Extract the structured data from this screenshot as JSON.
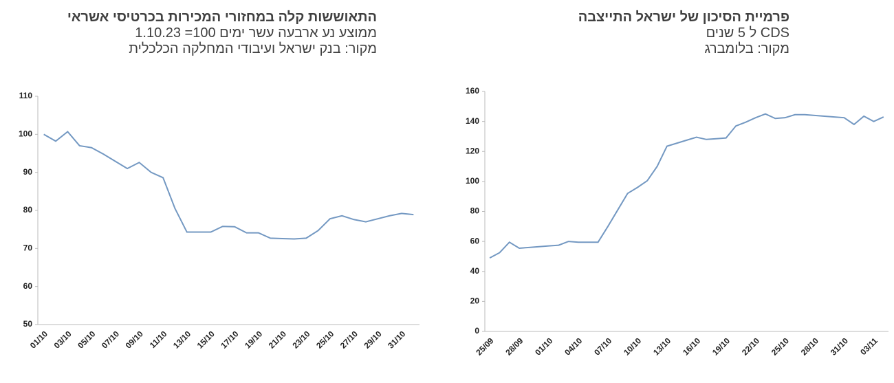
{
  "chart_data": [
    {
      "type": "line",
      "title": "התאוששות קלה במחזורי המכירות בכרטיסי אשראי",
      "subtitle": "ממוצע נע ארבעה עשר ימים 100= 1.10.23",
      "source": "מקור: בנק ישראל ועיבודי המחלקה הכלכלית",
      "categories": [
        "01/10",
        null,
        "03/10",
        null,
        "05/10",
        null,
        "07/10",
        null,
        "09/10",
        null,
        "11/10",
        null,
        "13/10",
        null,
        "15/10",
        null,
        "17/10",
        null,
        "19/10",
        null,
        "21/10",
        null,
        "23/10",
        null,
        "25/10",
        null,
        "27/10",
        null,
        "29/10",
        null,
        "31/10",
        null
      ],
      "series": [
        {
          "color": "#7398c2",
          "values": [
            100,
            98.2,
            100.7,
            97,
            96.5,
            94.8,
            92.9,
            91,
            92.6,
            90,
            88.6,
            80.5,
            74.3,
            74.3,
            74.3,
            75.8,
            75.7,
            74.1,
            74.1,
            72.7,
            72.6,
            72.5,
            72.7,
            74.7,
            77.8,
            78.6,
            77.6,
            77,
            77.8,
            78.6,
            79.2,
            78.9
          ]
        }
      ],
      "ylim": [
        50,
        110
      ],
      "yticks": [
        50,
        60,
        70,
        80,
        90,
        100,
        110
      ],
      "grid": false
    },
    {
      "type": "line",
      "title": "פרמיית הסיכון של ישראל התייצבה",
      "subtitle": "CDS ל 5 שנים",
      "source": "מקור: בלומברג",
      "categories": [
        "25/09",
        null,
        null,
        "28/09",
        null,
        null,
        "01/10",
        null,
        null,
        "04/10",
        null,
        null,
        "07/10",
        null,
        null,
        "10/10",
        null,
        null,
        "13/10",
        null,
        null,
        "16/10",
        null,
        null,
        "19/10",
        null,
        null,
        "22/10",
        null,
        null,
        "25/10",
        null,
        null,
        "28/10",
        null,
        null,
        "31/10",
        null,
        null,
        "03/11",
        null
      ],
      "series": [
        {
          "color": "#7398c2",
          "values": [
            49,
            52.5,
            59.5,
            55.5,
            56,
            56.5,
            57,
            57.5,
            60,
            59.5,
            59.5,
            59.5,
            70,
            81,
            92,
            96,
            100.5,
            110,
            123.5,
            125.5,
            127.5,
            129.5,
            128,
            128.5,
            129,
            137,
            139.5,
            142.5,
            145,
            142,
            142.5,
            144.5,
            144.5,
            144,
            143.5,
            143,
            142.5,
            138,
            143.5,
            140,
            143
          ]
        }
      ],
      "ylim": [
        0,
        160
      ],
      "yticks": [
        0,
        20,
        40,
        60,
        80,
        100,
        120,
        140,
        160
      ],
      "grid": false
    }
  ]
}
